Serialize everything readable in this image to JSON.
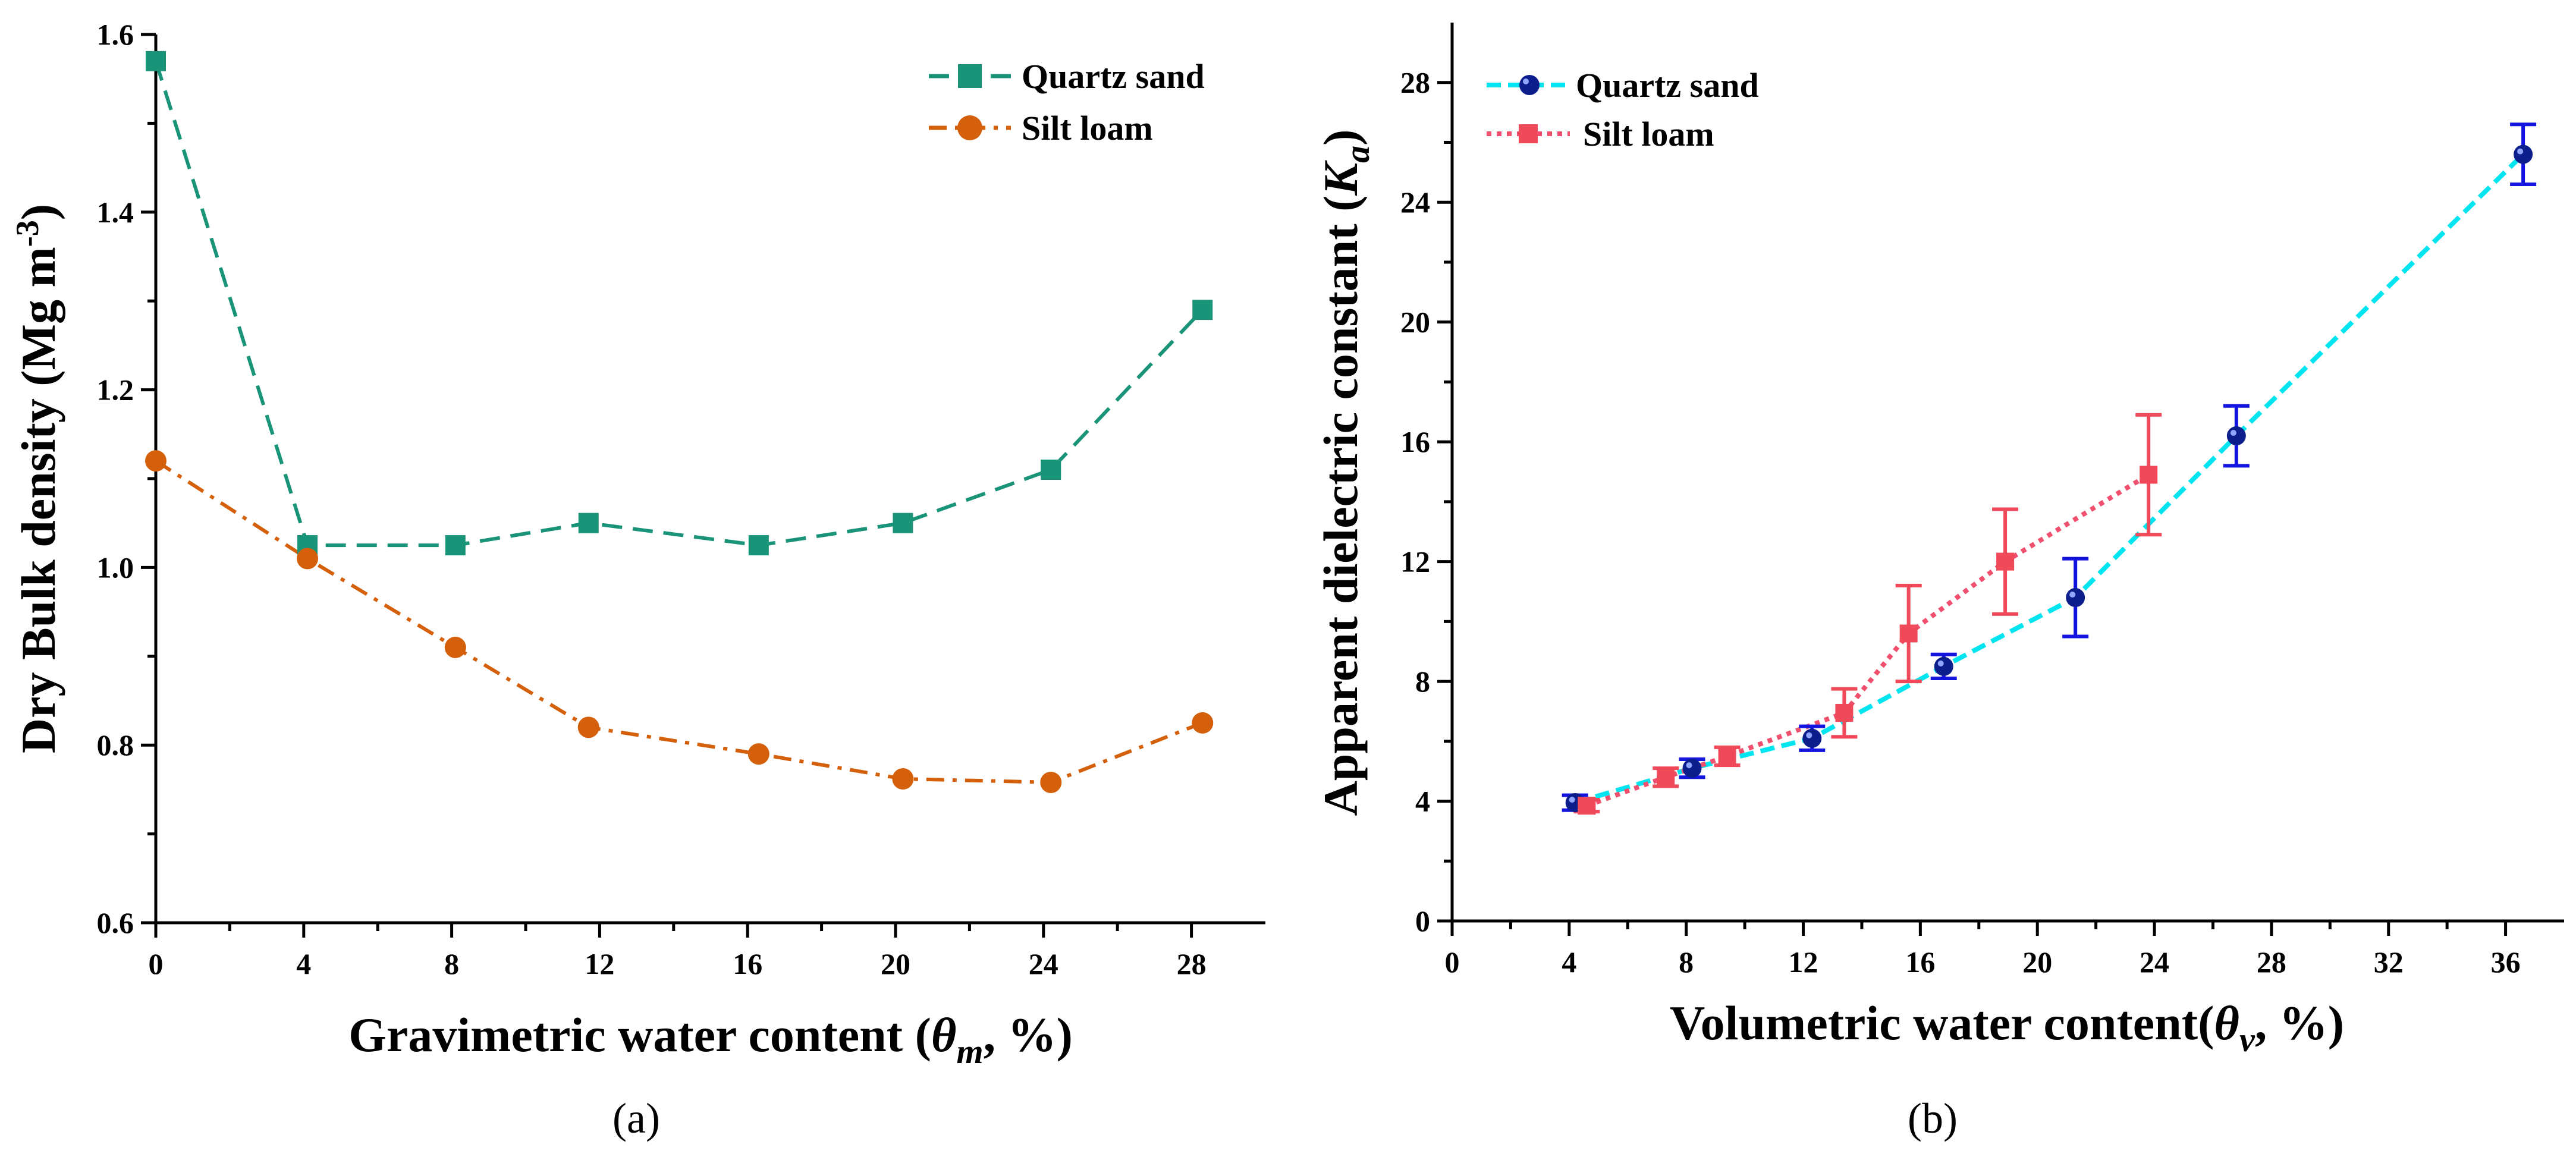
{
  "chart_data": [
    {
      "type": "line",
      "panel_label": "(a)",
      "ylabel_main": "Dry Bulk density (Mg m",
      "ylabel_sup": "-3",
      "ylabel_close": ")",
      "xlabel_pre": "Gravimetric water content (",
      "xlabel_sym": "θ",
      "xlabel_sub": "m",
      "xlabel_post": ", %)",
      "xlim": [
        0,
        30
      ],
      "ylim": [
        0.6,
        1.6
      ],
      "xticks": [
        0,
        4,
        8,
        12,
        16,
        20,
        24,
        28
      ],
      "xtick_labels": [
        "0",
        "4",
        "8",
        "12",
        "16",
        "20",
        "24",
        "28"
      ],
      "yticks": [
        0.6,
        0.8,
        1.0,
        1.2,
        1.4,
        1.6
      ],
      "ytick_labels": [
        "0.6",
        "0.8",
        "1.0",
        "1.2",
        "1.4",
        "1.6"
      ],
      "legend_position": "top-right",
      "series": [
        {
          "name": "Quartz sand",
          "color": "#1a9478",
          "marker": "square",
          "linestyle": "dashed",
          "x": [
            0,
            4.1,
            8.1,
            11.7,
            16.3,
            20.2,
            24.2,
            28.3
          ],
          "y": [
            1.57,
            1.025,
            1.025,
            1.05,
            1.025,
            1.05,
            1.11,
            1.29
          ]
        },
        {
          "name": "Silt loam",
          "color": "#d4600c",
          "marker": "circle",
          "linestyle": "dashdot",
          "x": [
            0,
            4.1,
            8.1,
            11.7,
            16.3,
            20.2,
            24.2,
            28.3
          ],
          "y": [
            1.12,
            1.01,
            0.91,
            0.82,
            0.79,
            0.762,
            0.758,
            0.825
          ]
        }
      ]
    },
    {
      "type": "line",
      "panel_label": "(b)",
      "ylabel_main": "Apparent dielectric constant (",
      "ylabel_sym": "K",
      "ylabel_sub": "a",
      "ylabel_close": ")",
      "xlabel_pre": "Volumetric water content(",
      "xlabel_sym": "θ",
      "xlabel_sub": "v",
      "xlabel_post": ", %)",
      "xlim": [
        0,
        38
      ],
      "ylim": [
        0,
        30
      ],
      "xticks": [
        0,
        4,
        8,
        12,
        16,
        20,
        24,
        28,
        32,
        36
      ],
      "xtick_labels": [
        "0",
        "4",
        "8",
        "12",
        "16",
        "20",
        "24",
        "28",
        "32",
        "36"
      ],
      "yticks": [
        0,
        4,
        8,
        12,
        16,
        20,
        24,
        28
      ],
      "ytick_labels": [
        "0",
        "4",
        "8",
        "12",
        "16",
        "20",
        "24",
        "28"
      ],
      "legend_position": "top-left",
      "series": [
        {
          "name": "Quartz sand",
          "color": "#00e5f0",
          "marker_color": "#0c1e8c",
          "error_color": "#1414e0",
          "marker": "sphere",
          "linestyle": "dashed",
          "x": [
            4.2,
            8.2,
            12.3,
            16.8,
            21.3,
            26.8,
            36.6
          ],
          "y": [
            3.95,
            5.1,
            6.1,
            8.5,
            10.8,
            16.2,
            25.6
          ],
          "err": [
            0.25,
            0.3,
            0.4,
            0.4,
            1.3,
            1.0,
            1.0
          ]
        },
        {
          "name": "Silt loam",
          "color": "#f0506e",
          "marker_color": "#f04a5a",
          "error_color": "#f04a5a",
          "marker": "square",
          "linestyle": "dotted",
          "x": [
            4.6,
            7.3,
            9.4,
            13.4,
            15.6,
            18.9,
            23.8
          ],
          "y": [
            3.85,
            4.8,
            5.5,
            6.95,
            9.6,
            12.0,
            14.9
          ],
          "err": [
            0.2,
            0.3,
            0.3,
            0.8,
            1.6,
            1.75,
            2.0
          ]
        }
      ]
    }
  ]
}
